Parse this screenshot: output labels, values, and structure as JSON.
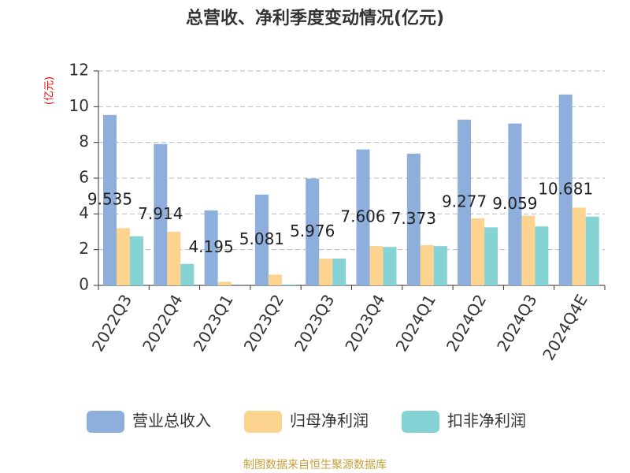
{
  "chart_data": {
    "type": "bar",
    "title": "总营收、净利季度变动情况(亿元)",
    "y_label": "(亿元)",
    "source": "制图数据来自恒生聚源数据库",
    "categories": [
      "2022Q3",
      "2022Q4",
      "2023Q1",
      "2023Q2",
      "2023Q3",
      "2023Q4",
      "2024Q1",
      "2024Q2",
      "2024Q3",
      "2024Q4E"
    ],
    "series": [
      {
        "name": "营业总收入",
        "color": "#8eaedb",
        "values": [
          9.535,
          7.914,
          4.195,
          5.081,
          5.976,
          7.606,
          7.373,
          9.277,
          9.059,
          10.681
        ],
        "show_labels": true
      },
      {
        "name": "归母净利润",
        "color": "#fcd38f",
        "values": [
          3.2,
          3.0,
          0.2,
          0.6,
          1.5,
          2.2,
          2.25,
          3.75,
          3.9,
          4.35
        ]
      },
      {
        "name": "扣非净利润",
        "color": "#86d3d5",
        "values": [
          2.75,
          1.2,
          0.0,
          0.05,
          1.5,
          2.15,
          2.2,
          3.25,
          3.3,
          3.85
        ]
      }
    ],
    "ylim": [
      0,
      12
    ],
    "yticks": [
      0,
      2,
      4,
      6,
      8,
      10,
      12
    ],
    "grid": true
  }
}
